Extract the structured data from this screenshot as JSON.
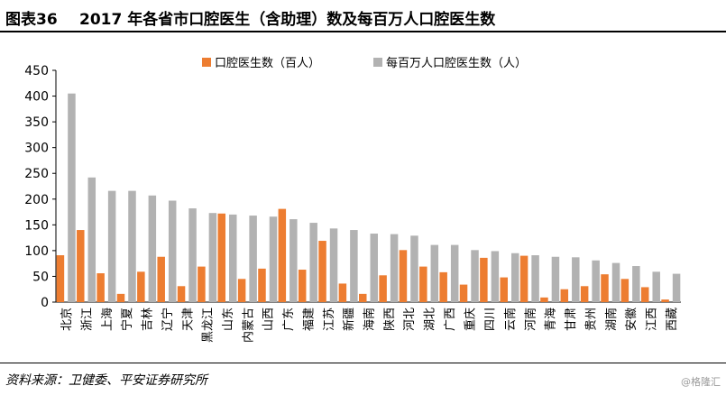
{
  "header": {
    "label": "图表36",
    "title": "2017 年各省市口腔医生（含助理）数及每百万人口腔医生数"
  },
  "footer": {
    "source": "资料来源：卫健委、平安证券研究所",
    "watermark": "@格隆汇"
  },
  "colors": {
    "series1": "#ED7D31",
    "series2": "#B2B2B2",
    "axis": "#000000"
  },
  "chart_data": {
    "type": "bar",
    "title": "2017 年各省市口腔医生（含助理）数及每百万人口腔医生数",
    "ylim": [
      0,
      450
    ],
    "yticks": [
      0,
      50,
      100,
      150,
      200,
      250,
      300,
      350,
      400,
      450
    ],
    "grid": false,
    "legend_position": "top",
    "categories": [
      "北京",
      "浙江",
      "上海",
      "宁夏",
      "吉林",
      "辽宁",
      "天津",
      "黑龙江",
      "山东",
      "内蒙古",
      "山西",
      "广东",
      "福建",
      "江苏",
      "新疆",
      "海南",
      "陕西",
      "河北",
      "湖北",
      "广西",
      "重庆",
      "四川",
      "云南",
      "河南",
      "青海",
      "甘肃",
      "贵州",
      "湖南",
      "安徽",
      "江西",
      "西藏"
    ],
    "series": [
      {
        "name": "口腔医生数（百人）",
        "color": "#ED7D31",
        "values": [
          91,
          140,
          56,
          16,
          59,
          88,
          31,
          69,
          172,
          45,
          65,
          181,
          63,
          119,
          36,
          16,
          52,
          101,
          69,
          58,
          34,
          86,
          48,
          90,
          9,
          25,
          31,
          54,
          45,
          29,
          5
        ]
      },
      {
        "name": "每百万人口腔医生数（人）",
        "color": "#B2B2B2",
        "values": [
          405,
          242,
          216,
          216,
          207,
          197,
          182,
          173,
          170,
          168,
          166,
          161,
          154,
          143,
          140,
          133,
          132,
          129,
          111,
          111,
          101,
          99,
          95,
          91,
          88,
          87,
          81,
          76,
          70,
          59,
          55
        ]
      }
    ]
  }
}
